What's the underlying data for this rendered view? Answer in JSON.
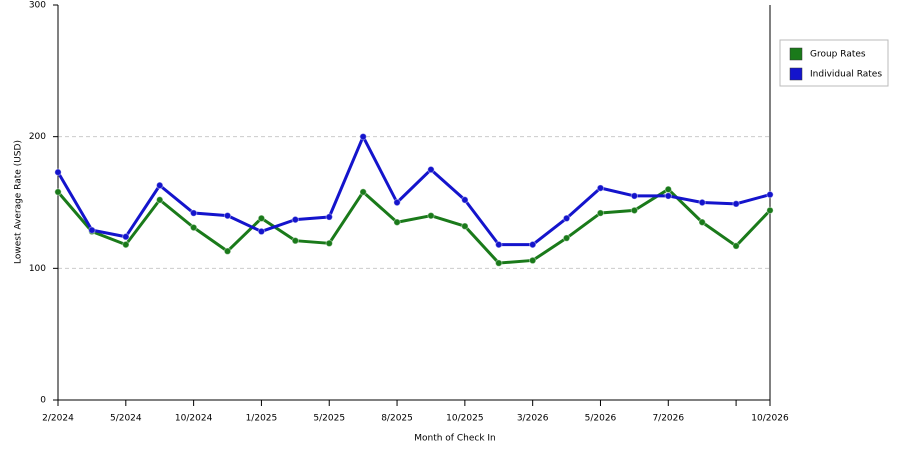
{
  "chart_data": {
    "type": "line",
    "x_label": "Month of Check In",
    "y_label": "Lowest Average Rate (USD)",
    "categories": [
      "2/2024",
      null,
      "5/2024",
      null,
      "10/2024",
      null,
      "1/2025",
      null,
      "5/2025",
      null,
      "8/2025",
      null,
      "10/2025",
      null,
      "3/2026",
      null,
      "5/2026",
      null,
      "7/2026",
      null,
      null,
      "10/2026"
    ],
    "series": [
      {
        "name": "Group Rates",
        "color": "#1a7a1a",
        "values": [
          158,
          128,
          118,
          152,
          131,
          113,
          138,
          121,
          119,
          158,
          135,
          140,
          132,
          104,
          106,
          123,
          142,
          144,
          160,
          135,
          117,
          144
        ]
      },
      {
        "name": "Individual Rates",
        "color": "#1414cc",
        "values": [
          173,
          129,
          124,
          163,
          142,
          140,
          128,
          137,
          139,
          200,
          150,
          175,
          152,
          118,
          118,
          138,
          161,
          155,
          155,
          150,
          149,
          156
        ]
      }
    ],
    "ylim": [
      0,
      300
    ],
    "yticks": [
      0,
      100,
      200,
      300
    ],
    "grid": true
  }
}
